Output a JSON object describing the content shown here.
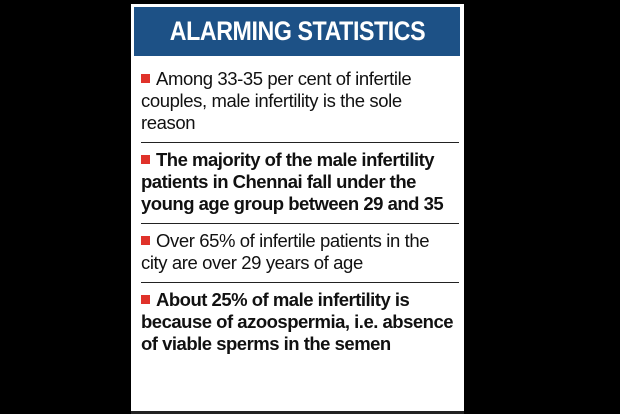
{
  "title": "ALARMING STATISTICS",
  "colors": {
    "banner": "#1d5186",
    "bullet": "#e0322a",
    "background": "#000000",
    "card": "#ffffff"
  },
  "icons": {
    "bullet": "red-square-bullet"
  },
  "items": [
    {
      "text": "Among 33-35 per cent of infertile couples, male infertility is the sole reason",
      "bold": false
    },
    {
      "text": "The majority of the male infertility patients in Chennai fall under the young age group between 29 and 35",
      "bold": true
    },
    {
      "text": "Over 65% of infertile patients in the city are over 29 years of age",
      "bold": false
    },
    {
      "text": "About 25% of male infertility is because of azoospermia, i.e. absence of viable sperms in the semen",
      "bold": true
    }
  ]
}
